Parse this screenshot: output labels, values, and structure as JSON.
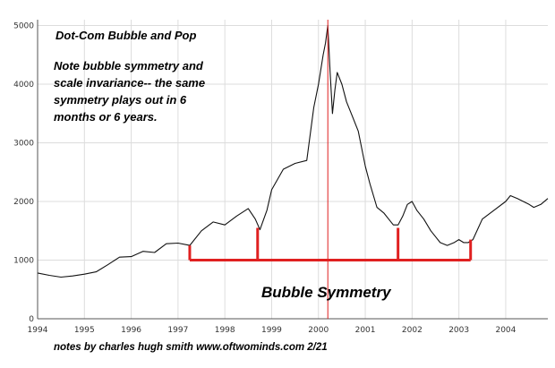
{
  "chart_data": {
    "type": "line",
    "title": "Dot-Com Bubble and Pop",
    "xlabel": "",
    "ylabel": "",
    "xlim": [
      1994.0,
      2004.9
    ],
    "ylim": [
      0,
      5100
    ],
    "grid": true,
    "x_ticks": [
      "1994",
      "1995",
      "1996",
      "1997",
      "1998",
      "1999",
      "2000",
      "2001",
      "2002",
      "2003",
      "2004"
    ],
    "y_ticks": [
      "0",
      "1000",
      "2000",
      "3000",
      "4000",
      "5000"
    ],
    "series": [
      {
        "color": "#111111",
        "x": [
          1994.0,
          1994.25,
          1994.5,
          1994.75,
          1995.0,
          1995.25,
          1995.5,
          1995.75,
          1996.0,
          1996.25,
          1996.5,
          1996.75,
          1997.0,
          1997.25,
          1997.5,
          1997.75,
          1998.0,
          1998.25,
          1998.5,
          1998.65,
          1998.75,
          1998.9,
          1999.0,
          1999.25,
          1999.5,
          1999.75,
          1999.9,
          2000.0,
          2000.1,
          2000.15,
          2000.2,
          2000.25,
          2000.3,
          2000.35,
          2000.4,
          2000.5,
          2000.6,
          2000.7,
          2000.75,
          2000.85,
          2001.0,
          2001.1,
          2001.25,
          2001.4,
          2001.5,
          2001.6,
          2001.7,
          2001.8,
          2001.9,
          2002.0,
          2002.1,
          2002.25,
          2002.4,
          2002.5,
          2002.6,
          2002.75,
          2002.9,
          2003.0,
          2003.1,
          2003.2,
          2003.3,
          2003.5,
          2003.75,
          2004.0,
          2004.1,
          2004.25,
          2004.5,
          2004.6,
          2004.75,
          2004.9
        ],
        "y": [
          780,
          740,
          710,
          730,
          760,
          800,
          920,
          1050,
          1060,
          1150,
          1130,
          1280,
          1290,
          1250,
          1500,
          1650,
          1600,
          1750,
          1880,
          1700,
          1520,
          1850,
          2200,
          2550,
          2650,
          2700,
          3600,
          4000,
          4500,
          4700,
          5000,
          4200,
          3500,
          3900,
          4200,
          4000,
          3700,
          3500,
          3400,
          3200,
          2600,
          2300,
          1900,
          1800,
          1700,
          1600,
          1600,
          1750,
          1950,
          2000,
          1850,
          1700,
          1500,
          1400,
          1300,
          1250,
          1300,
          1350,
          1300,
          1300,
          1350,
          1700,
          1850,
          2000,
          2100,
          2050,
          1950,
          1900,
          1950,
          2050
        ]
      }
    ],
    "markers": {
      "peak_line": {
        "x": 2000.2,
        "y0": 0,
        "y1": 5100,
        "color": "#e02020"
      },
      "bars": [
        {
          "x0": 1997.25,
          "x1": 2003.25,
          "y": 1000,
          "color": "#e02020"
        },
        {
          "x0": 1998.7,
          "x1": 2001.7,
          "y": 1000,
          "color": "#e02020"
        }
      ],
      "verticals": [
        {
          "x": 1997.25,
          "y_top": 1250,
          "y_bottom": 1000
        },
        {
          "x": 1998.7,
          "y_top": 1550,
          "y_bottom": 1000
        },
        {
          "x": 2001.7,
          "y_top": 1550,
          "y_bottom": 1000
        },
        {
          "x": 2003.25,
          "y_top": 1350,
          "y_bottom": 1000
        }
      ]
    },
    "annotations": {
      "title": "Dot-Com Bubble and Pop",
      "note_lines": [
        "Note bubble symmetry and",
        "scale invariance-- the same",
        "symmetry plays out in 6",
        "months or 6 years."
      ],
      "symmetry_label": "Bubble Symmetry",
      "footer": "notes by charles hugh smith   www.oftwominds.com  2/21"
    }
  }
}
